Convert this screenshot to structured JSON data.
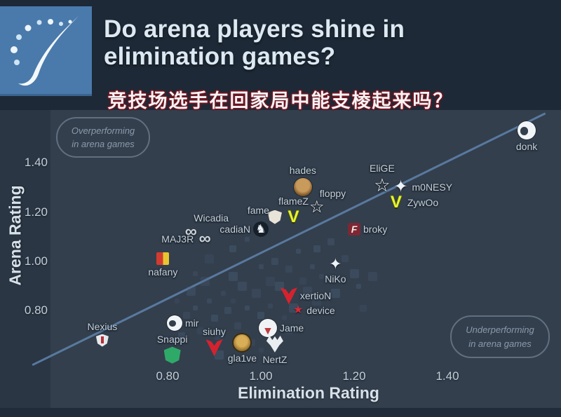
{
  "header": {
    "title_line1": "Do arena players shine in",
    "title_line2": "elimination games?",
    "subtitle_zh": "竞技场选手在回家局中能支棱起来吗？"
  },
  "annotations": {
    "top_left": {
      "line1": "Overperforming",
      "line2": "in arena games"
    },
    "bottom_right": {
      "line1": "Underperforming",
      "line2": "in arena games"
    }
  },
  "colors": {
    "header_bg": "#1d2936",
    "chart_bg": "#2a3644",
    "plot_bg": "#333f4d",
    "brand_blue": "#497aab",
    "trend_line": "#5d7fa9",
    "label_text": "#c6d1dc",
    "subtitle_outline": "#6b1622",
    "vitality_yellow": "#e8f52e",
    "mouz_red": "#d6222e"
  },
  "chart_data": {
    "type": "scatter",
    "title": "Do arena players shine in elimination games?",
    "xlabel": "Elimination Rating",
    "ylabel": "Arena Rating",
    "x_ticks": [
      {
        "v": 0.8,
        "label": "0.80"
      },
      {
        "v": 1.0,
        "label": "1.00"
      },
      {
        "v": 1.2,
        "label": "1.20"
      },
      {
        "v": 1.4,
        "label": "1.40"
      }
    ],
    "y_ticks": [
      {
        "v": 0.8,
        "label": "0.80"
      },
      {
        "v": 1.0,
        "label": "1.00"
      },
      {
        "v": 1.2,
        "label": "1.20"
      },
      {
        "v": 1.4,
        "label": "1.40"
      }
    ],
    "xlim": [
      0.55,
      1.64
    ],
    "ylim": [
      0.55,
      1.62
    ],
    "grid": false,
    "trendline": {
      "x1": 0.51,
      "y1": 0.58,
      "x2": 1.61,
      "y2": 1.6
    },
    "points": [
      {
        "name": "donk",
        "x": 1.57,
        "y": 1.53,
        "logo": "white-dragon",
        "size": 26,
        "label_pos": "below"
      },
      {
        "name": "hades",
        "x": 1.09,
        "y": 1.3,
        "logo": "bronze-crest",
        "size": 26,
        "label_pos": "above"
      },
      {
        "name": "EliGE",
        "x": 1.26,
        "y": 1.31,
        "logo": "star-outline",
        "size": 26,
        "label_pos": "above"
      },
      {
        "name": "m0NESY",
        "x": 1.3,
        "y": 1.3,
        "logo": "white-falcon",
        "size": 24,
        "label_pos": "right"
      },
      {
        "name": "ZywOo",
        "x": 1.29,
        "y": 1.24,
        "logo": "yellow-v",
        "size": 24,
        "label_pos": "right"
      },
      {
        "name": "floppy",
        "x": 1.12,
        "y": 1.22,
        "logo": "star-outline",
        "size": 24,
        "label_pos": "above-right"
      },
      {
        "name": "flameZ",
        "x": 1.07,
        "y": 1.18,
        "logo": "yellow-v",
        "size": 24,
        "label_pos": "above"
      },
      {
        "name": "fame",
        "x": 1.03,
        "y": 1.18,
        "logo": "white-shield",
        "size": 20,
        "label_pos": "left-above"
      },
      {
        "name": "Wicadia",
        "x": 0.85,
        "y": 1.12,
        "logo": "infinity",
        "size": 24,
        "label_pos": "above-right"
      },
      {
        "name": "cadiaN",
        "x": 1.0,
        "y": 1.13,
        "logo": "horse-badge",
        "size": 22,
        "label_pos": "left"
      },
      {
        "name": "MAJ3R",
        "x": 0.88,
        "y": 1.09,
        "logo": "infinity",
        "size": 24,
        "label_pos": "left"
      },
      {
        "name": "broky",
        "x": 1.2,
        "y": 1.13,
        "logo": "maroon-f",
        "size": 18,
        "label_pos": "right"
      },
      {
        "name": "nafany",
        "x": 0.79,
        "y": 1.01,
        "logo": "red-yellow",
        "size": 18,
        "label_pos": "below"
      },
      {
        "name": "NiKo",
        "x": 1.16,
        "y": 0.99,
        "logo": "white-falcon",
        "size": 22,
        "label_pos": "below"
      },
      {
        "name": "xertioN",
        "x": 1.06,
        "y": 0.86,
        "logo": "red-m",
        "size": 24,
        "label_pos": "right"
      },
      {
        "name": "device",
        "x": 1.08,
        "y": 0.8,
        "logo": "red-star",
        "size": 16,
        "label_pos": "right"
      },
      {
        "name": "Nexius",
        "x": 0.66,
        "y": 0.68,
        "logo": "white-crest",
        "size": 18,
        "label_pos": "above"
      },
      {
        "name": "mir",
        "x": 0.815,
        "y": 0.75,
        "logo": "white-dragon",
        "size": 22,
        "label_pos": "right"
      },
      {
        "name": "Snappi",
        "x": 0.81,
        "y": 0.62,
        "logo": "green-emblem",
        "size": 24,
        "label_pos": "above"
      },
      {
        "name": "siuhy",
        "x": 0.9,
        "y": 0.65,
        "logo": "red-m",
        "size": 24,
        "label_pos": "above"
      },
      {
        "name": "Jame",
        "x": 1.015,
        "y": 0.73,
        "logo": "white-bear",
        "size": 26,
        "label_pos": "right"
      },
      {
        "name": "gla1ve",
        "x": 0.96,
        "y": 0.67,
        "logo": "gold-coin",
        "size": 24,
        "label_pos": "below"
      },
      {
        "name": "NertZ",
        "x": 1.03,
        "y": 0.665,
        "logo": "white-bat",
        "size": 24,
        "label_pos": "below"
      }
    ],
    "background_points": [
      [
        0.82,
        0.84
      ],
      [
        0.84,
        0.78
      ],
      [
        0.85,
        0.88
      ],
      [
        0.86,
        0.81
      ],
      [
        0.87,
        0.72
      ],
      [
        0.88,
        0.92
      ],
      [
        0.89,
        0.84
      ],
      [
        0.9,
        0.77
      ],
      [
        0.91,
        0.7
      ],
      [
        0.92,
        0.87
      ],
      [
        0.93,
        0.8
      ],
      [
        0.94,
        0.94
      ],
      [
        0.94,
        0.84
      ],
      [
        0.95,
        0.74
      ],
      [
        0.96,
        0.9
      ],
      [
        0.97,
        0.81
      ],
      [
        0.98,
        0.67
      ],
      [
        0.99,
        0.87
      ],
      [
        1.0,
        0.98
      ],
      [
        1.0,
        0.78
      ],
      [
        1.02,
        0.92
      ],
      [
        1.02,
        0.82
      ],
      [
        1.03,
        1.0
      ],
      [
        1.04,
        0.9
      ],
      [
        1.05,
        0.77
      ],
      [
        1.06,
        0.97
      ],
      [
        1.07,
        0.81
      ],
      [
        1.08,
        1.04
      ],
      [
        1.09,
        0.92
      ],
      [
        1.1,
        0.88
      ],
      [
        1.11,
        0.98
      ],
      [
        1.12,
        1.05
      ],
      [
        1.12,
        0.84
      ],
      [
        1.13,
        0.94
      ],
      [
        1.15,
        1.08
      ],
      [
        1.16,
        0.87
      ],
      [
        1.17,
        0.92
      ],
      [
        1.18,
        1.01
      ],
      [
        1.2,
        0.95
      ],
      [
        1.21,
        0.9
      ],
      [
        1.22,
        0.81
      ],
      [
        1.24,
        0.94
      ],
      [
        0.97,
        1.09
      ],
      [
        0.94,
        1.05
      ],
      [
        0.89,
        1.01
      ],
      [
        0.86,
        0.95
      ],
      [
        0.83,
        0.7
      ],
      [
        0.91,
        0.62
      ],
      [
        1.0,
        0.64
      ],
      [
        1.06,
        0.72
      ]
    ]
  }
}
